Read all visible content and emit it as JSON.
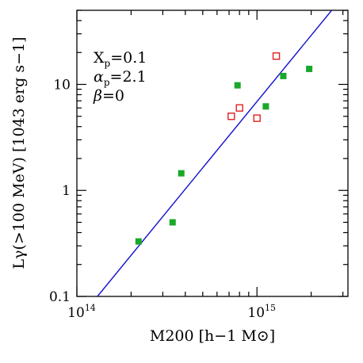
{
  "chart_data": {
    "type": "scatter",
    "xscale": "log",
    "yscale": "log",
    "xlim": [
      100000000000000.0,
      3200000000000000.0
    ],
    "ylim": [
      0.1,
      50
    ],
    "grid": false,
    "xlabel": "M200 [h−1 M⊙]",
    "ylabel": "Lγ(>100 MeV) [1043 erg s−1]",
    "xticks": [
      {
        "value": 100000000000000.0,
        "label": "10",
        "exp": "14"
      },
      {
        "value": 1000000000000000.0,
        "label": "10",
        "exp": "15"
      }
    ],
    "yticks": [
      {
        "value": 0.1,
        "label": "0.1"
      },
      {
        "value": 1,
        "label": "1"
      },
      {
        "value": 10,
        "label": "10"
      }
    ],
    "annotations": [
      {
        "base": "X",
        "sub": "p",
        "rest": "=0.1"
      },
      {
        "base": "α",
        "sub": "p",
        "rest": "=2.1"
      },
      {
        "base": "β",
        "sub": "",
        "rest": "=0"
      }
    ],
    "series": [
      {
        "marker": "filled-square",
        "color": "#1aa82a",
        "points": [
          {
            "x": 220000000000000.0,
            "y": 0.33
          },
          {
            "x": 340000000000000.0,
            "y": 0.5
          },
          {
            "x": 380000000000000.0,
            "y": 1.45
          },
          {
            "x": 780000000000000.0,
            "y": 9.8
          },
          {
            "x": 1120000000000000.0,
            "y": 6.2
          },
          {
            "x": 1400000000000000.0,
            "y": 12
          },
          {
            "x": 1950000000000000.0,
            "y": 14
          }
        ]
      },
      {
        "marker": "open-square",
        "color": "#e02020",
        "points": [
          {
            "x": 720000000000000.0,
            "y": 5.0
          },
          {
            "x": 800000000000000.0,
            "y": 6.0
          },
          {
            "x": 1000000000000000.0,
            "y": 4.8
          },
          {
            "x": 1280000000000000.0,
            "y": 18.5
          }
        ]
      }
    ],
    "fit_line": {
      "color": "#1010cc",
      "points": [
        {
          "x": 130000000000000.0,
          "y": 0.1
        },
        {
          "x": 2600000000000000.0,
          "y": 50
        }
      ]
    }
  }
}
